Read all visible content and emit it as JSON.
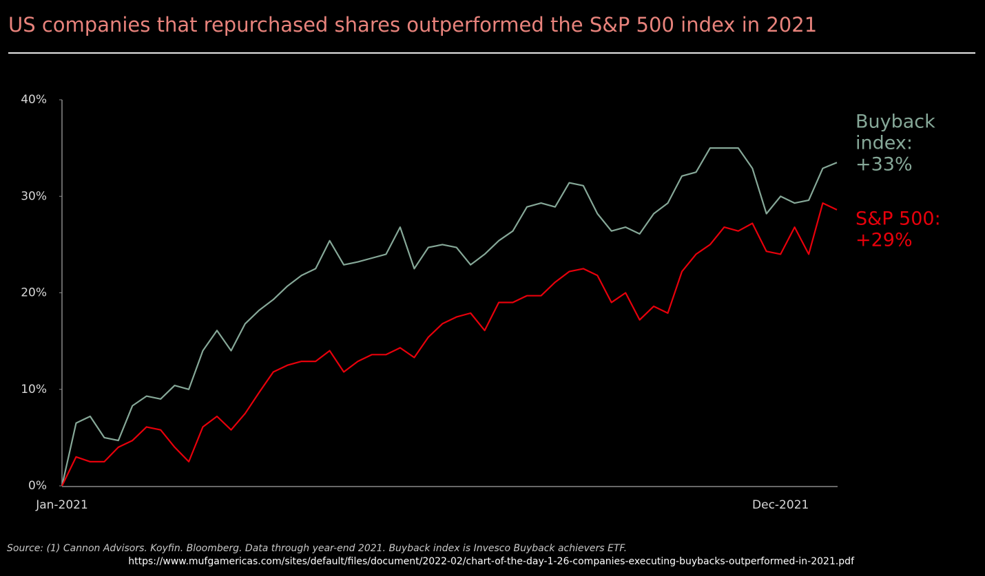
{
  "chart_data": {
    "type": "line",
    "title": "US companies that repurchased shares outperformed the S&P 500 index in 2021",
    "categories": [
      "Jan-2021",
      null,
      null,
      null,
      null,
      null,
      null,
      null,
      null,
      null,
      null,
      null,
      null,
      null,
      null,
      null,
      null,
      null,
      null,
      null,
      null,
      null,
      null,
      null,
      null,
      null,
      null,
      null,
      null,
      null,
      null,
      null,
      null,
      null,
      null,
      null,
      null,
      null,
      null,
      null,
      null,
      null,
      null,
      null,
      null,
      null,
      null,
      null,
      null,
      null,
      null,
      "Dec-2021",
      null,
      null,
      null,
      null
    ],
    "series": [
      {
        "color": "#86a898",
        "label_lines": [
          "Buyback",
          "index:",
          "+33%"
        ],
        "values": [
          0,
          6.5,
          7.2,
          5.0,
          4.7,
          8.3,
          9.3,
          9.0,
          10.4,
          10.0,
          14.0,
          16.1,
          14.0,
          16.8,
          18.2,
          19.3,
          20.7,
          21.8,
          22.5,
          25.4,
          22.9,
          23.2,
          23.6,
          24.0,
          26.8,
          22.5,
          24.7,
          25.0,
          24.7,
          22.9,
          24.0,
          25.4,
          26.4,
          28.9,
          29.3,
          28.9,
          31.4,
          31.1,
          28.2,
          26.4,
          26.8,
          26.1,
          28.2,
          29.3,
          32.1,
          32.5,
          35.0,
          35.0,
          35.0,
          32.9,
          28.2,
          30.0,
          29.3,
          29.6,
          32.9,
          33.5
        ]
      },
      {
        "color": "#e8000b",
        "label_lines": [
          "S&P 500:",
          "+29%"
        ],
        "values": [
          0,
          3.0,
          2.5,
          2.5,
          4.0,
          4.7,
          6.1,
          5.8,
          4.0,
          2.5,
          6.1,
          7.2,
          5.8,
          7.5,
          9.7,
          11.8,
          12.5,
          12.9,
          12.9,
          14.0,
          11.8,
          12.9,
          13.6,
          13.6,
          14.3,
          13.3,
          15.4,
          16.8,
          17.5,
          17.9,
          16.1,
          19.0,
          19.0,
          19.7,
          19.7,
          21.1,
          22.2,
          22.5,
          21.8,
          19.0,
          20.0,
          17.2,
          18.6,
          17.9,
          22.2,
          24.0,
          25.0,
          26.8,
          26.4,
          27.2,
          24.3,
          24.0,
          26.8,
          24.0,
          29.3,
          28.6
        ]
      }
    ],
    "ylim": [
      0,
      40
    ],
    "yticks": [
      {
        "value": 0,
        "label": "0%"
      },
      {
        "value": 10,
        "label": "10%"
      },
      {
        "value": 20,
        "label": "20%"
      },
      {
        "value": 30,
        "label": "30%"
      },
      {
        "value": 40,
        "label": "40%"
      }
    ],
    "grid": false,
    "source": "Source:  (1) Cannon Advisors. Koyfin. Bloomberg. Data  through year-end 2021. Buyback index is Invesco  Buyback achievers ETF.",
    "url": "https://www.mufgamericas.com/sites/default/files/document/2022-02/chart-of-the-day-1-26-companies-executing-buybacks-outperformed-in-2021.pdf"
  }
}
